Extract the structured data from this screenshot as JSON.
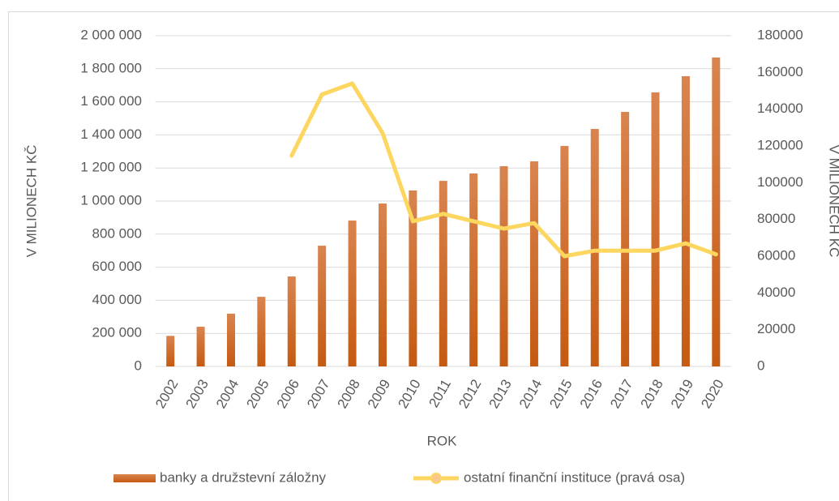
{
  "chart_data": {
    "type": "bar",
    "categories": [
      "2002",
      "2003",
      "2004",
      "2005",
      "2006",
      "2007",
      "2008",
      "2009",
      "2010",
      "2011",
      "2012",
      "2013",
      "2014",
      "2015",
      "2016",
      "2017",
      "2018",
      "2019",
      "2020"
    ],
    "series": [
      {
        "name": "banky a družstevní záložny",
        "type": "bar",
        "color": "#c65911",
        "values": [
          185000,
          240000,
          319000,
          421000,
          544000,
          730000,
          882000,
          985000,
          1064000,
          1122000,
          1167000,
          1211000,
          1240000,
          1333000,
          1436000,
          1539000,
          1657000,
          1755000,
          1868000
        ]
      },
      {
        "name": "ostatní finanční instituce (pravá osa)",
        "type": "line",
        "axis": "y2",
        "color": "#fdd660",
        "values": [
          null,
          null,
          null,
          null,
          114700,
          148000,
          154000,
          127000,
          79000,
          83000,
          79000,
          75000,
          78000,
          60000,
          63000,
          63000,
          63000,
          67000,
          61000
        ]
      }
    ],
    "xlabel": "ROK",
    "ylabel": "V MILIONECH KČ",
    "y2label": "V MILIONECH KČ",
    "ylim": [
      0,
      2000000
    ],
    "yticks": [
      0,
      {
        "value": 200000,
        "label": "200 000"
      },
      {
        "value": 400000,
        "label": "400 000"
      },
      {
        "value": 600000,
        "label": "600 000"
      },
      {
        "value": 800000,
        "label": "800 000"
      },
      {
        "value": 1000000,
        "label": "1 000 000"
      },
      {
        "value": 1200000,
        "label": "1 200 000"
      },
      {
        "value": 1400000,
        "label": "1 400 000"
      },
      {
        "value": 1600000,
        "label": "1 600 000"
      },
      {
        "value": 1800000,
        "label": "1 800 000"
      },
      {
        "value": 2000000,
        "label": "2 000 000"
      }
    ],
    "y2lim": [
      0,
      180000
    ],
    "y2ticks": [
      0,
      20000,
      40000,
      60000,
      80000,
      100000,
      120000,
      140000,
      160000,
      180000
    ],
    "grid": true,
    "legend": "bottom"
  }
}
